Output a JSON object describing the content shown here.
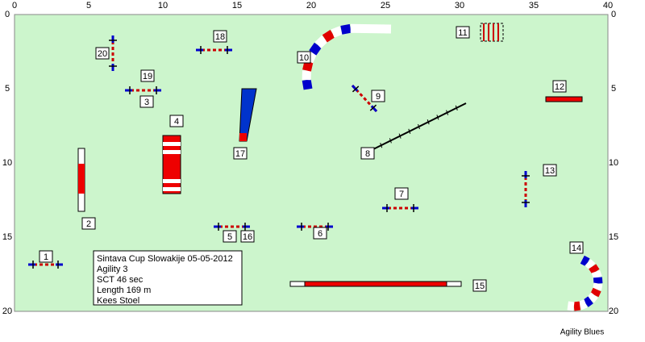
{
  "axes": {
    "x_ticks": [
      0,
      5,
      10,
      15,
      20,
      25,
      30,
      35,
      40
    ],
    "y_ticks": [
      0,
      5,
      10,
      15,
      20
    ]
  },
  "obstacle_labels": [
    "1",
    "2",
    "3",
    "4",
    "5",
    "6",
    "7",
    "8",
    "9",
    "10",
    "11",
    "12",
    "13",
    "14",
    "15",
    "16",
    "17",
    "18",
    "19",
    "20"
  ],
  "info": {
    "lines": [
      "Sintava Cup Slowakije 05-05-2012",
      "Agility 3",
      "SCT 46 sec",
      "Length 169 m",
      "Kees Stoel"
    ]
  },
  "footer": "Agility Blues"
}
